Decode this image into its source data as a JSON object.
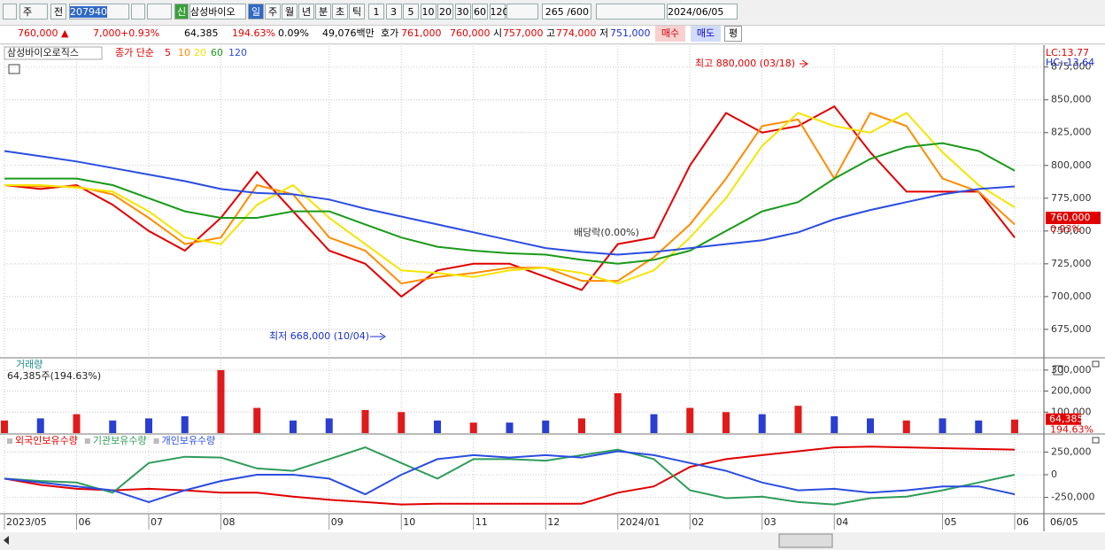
{
  "toolbar": {
    "market": "주",
    "scope": "전",
    "code": "207940",
    "badge": "신",
    "name": "삼성바이오",
    "periods": [
      "일",
      "주",
      "월",
      "년",
      "분",
      "초",
      "틱"
    ],
    "minutes": [
      "1",
      "3",
      "5",
      "10",
      "20",
      "30",
      "60",
      "120"
    ],
    "count": "265 /600",
    "date": "2024/06/05"
  },
  "quote": {
    "price": "760,000 ▲",
    "change": "7,000",
    "change_pct": "+0.93%",
    "volume": "64,385",
    "volume_ratio": "194.63%",
    "turnover": "0.09%",
    "amount": "49,076백만",
    "bid_label": "호가",
    "ask": "761,000",
    "bid": "760,000",
    "open_label": "시",
    "open": "757,000",
    "high_label": "고",
    "high": "774,000",
    "low_label": "저",
    "low": "751,000",
    "buy": "매수",
    "sell": "매도",
    "avg": "평"
  },
  "x_axis": {
    "categories": [
      "2023/05",
      null,
      "06",
      null,
      "07",
      null,
      "08",
      null,
      null,
      "09",
      null,
      "10",
      null,
      "11",
      null,
      "12",
      null,
      "2024/01",
      null,
      "02",
      null,
      "03",
      null,
      "04",
      null,
      null,
      "05",
      null,
      "06"
    ],
    "end_label": "06/05"
  },
  "chart_data": [
    {
      "type": "line",
      "title": "삼성바이오로직스",
      "subtitle": "종가 단순",
      "ylim": [
        654000,
        891000
      ],
      "yticks": [
        {
          "value": 675000,
          "label": "675,000"
        },
        {
          "value": 700000,
          "label": "700,000"
        },
        {
          "value": 725000,
          "label": "725,000"
        },
        {
          "value": 750000,
          "label": "750,000"
        },
        {
          "value": 775000,
          "label": "775,000"
        },
        {
          "value": 800000,
          "label": "800,000"
        },
        {
          "value": 825000,
          "label": "825,000"
        },
        {
          "value": 850000,
          "label": "850,000"
        },
        {
          "value": 875000,
          "label": "875,000"
        }
      ],
      "grid": true,
      "series": [
        {
          "name": "5",
          "color": "#e00000",
          "values": [
            785000,
            782000,
            785000,
            770000,
            750000,
            735000,
            760000,
            795000,
            765000,
            735000,
            725000,
            700000,
            720000,
            725000,
            725000,
            715000,
            705000,
            740000,
            745000,
            800000,
            840000,
            825000,
            830000,
            845000,
            810000,
            780000,
            780000,
            780000,
            745000
          ]
        },
        {
          "name": "10",
          "color": "#ff8c00",
          "values": [
            785000,
            784000,
            784000,
            778000,
            760000,
            740000,
            745000,
            785000,
            778000,
            745000,
            735000,
            710000,
            715000,
            718000,
            722000,
            722000,
            712000,
            712000,
            730000,
            755000,
            790000,
            830000,
            835000,
            790000,
            840000,
            830000,
            790000,
            780000,
            755000
          ]
        },
        {
          "name": "20",
          "color": "#f5e400",
          "values": [
            785000,
            785000,
            783000,
            780000,
            765000,
            745000,
            740000,
            770000,
            785000,
            760000,
            740000,
            720000,
            718000,
            715000,
            720000,
            722000,
            718000,
            710000,
            720000,
            745000,
            775000,
            815000,
            840000,
            830000,
            825000,
            840000,
            810000,
            785000,
            768000
          ]
        },
        {
          "name": "60",
          "color": "#1a9a1a",
          "values": [
            790000,
            790000,
            790000,
            785000,
            775000,
            765000,
            760000,
            760000,
            765000,
            765000,
            755000,
            745000,
            738000,
            735000,
            733000,
            732000,
            728000,
            725000,
            728000,
            735000,
            750000,
            765000,
            772000,
            790000,
            805000,
            814000,
            817000,
            811000,
            796000
          ]
        },
        {
          "name": "120",
          "color": "#2b4de0",
          "values": [
            811000,
            807000,
            803000,
            798000,
            793000,
            788000,
            782000,
            779000,
            778000,
            774000,
            767000,
            761000,
            755000,
            749000,
            743000,
            737000,
            734000,
            732000,
            734000,
            737000,
            740000,
            743000,
            749000,
            759000,
            766000,
            772000,
            778000,
            782000,
            784000
          ]
        }
      ],
      "annotations": [
        "최고 880,000 (03/18)",
        "최저 668,000 (10/04)",
        "배당락(0.00%)"
      ],
      "lc": "LC:13.77",
      "hc": "HC:-13.64",
      "price_marker": {
        "value": 760000,
        "label": "760,000",
        "change": "0.93%"
      }
    },
    {
      "type": "bar",
      "title": "거래량",
      "subtitle": "64,385주(194.63%)",
      "ylim": [
        0,
        350000
      ],
      "yticks": [
        {
          "value": 100000,
          "label": "100,000"
        },
        {
          "value": 200000,
          "label": "200,000"
        },
        {
          "value": 300000,
          "label": "300,000"
        }
      ],
      "grid": true,
      "values": [
        60000,
        70000,
        90000,
        60000,
        70000,
        80000,
        300000,
        120000,
        60000,
        70000,
        110000,
        100000,
        60000,
        50000,
        50000,
        60000,
        70000,
        190000,
        90000,
        120000,
        100000,
        90000,
        130000,
        80000,
        70000,
        60000,
        70000,
        60000,
        64385
      ],
      "up": [
        true,
        false,
        true,
        false,
        false,
        false,
        true,
        true,
        false,
        false,
        true,
        true,
        false,
        true,
        false,
        false,
        true,
        true,
        false,
        true,
        true,
        false,
        true,
        false,
        false,
        true,
        false,
        false,
        true
      ],
      "up_color": "#e01a1a",
      "down_color": "#2a3fd0",
      "last_marker": {
        "value": 64385,
        "label": "64,385",
        "ratio": "194.63%"
      }
    },
    {
      "type": "line",
      "ylim": [
        -410000,
        420000
      ],
      "yticks": [
        {
          "value": -250000,
          "label": "-250,000"
        },
        0,
        {
          "value": 250000,
          "label": "250,000"
        }
      ],
      "grid": true,
      "series": [
        {
          "name": "외국인보유수량",
          "color": "#e00000",
          "values": [
            -43000,
            -112000,
            -155000,
            -172000,
            -155000,
            -172000,
            -198000,
            -198000,
            -241000,
            -276000,
            -302000,
            -328000,
            -319000,
            -319000,
            -319000,
            -319000,
            -319000,
            -198000,
            -129000,
            86000,
            172000,
            216000,
            259000,
            302000,
            310000,
            302000,
            293000,
            284000,
            276000
          ]
        },
        {
          "name": "기관보유수량",
          "color": "#2e9c5a",
          "values": [
            -43000,
            -69000,
            -86000,
            -198000,
            129000,
            198000,
            190000,
            69000,
            43000,
            172000,
            302000,
            129000,
            -43000,
            172000,
            172000,
            155000,
            216000,
            276000,
            172000,
            -172000,
            -259000,
            -241000,
            -302000,
            -328000,
            -259000,
            -241000,
            -172000,
            -86000,
            0
          ]
        },
        {
          "name": "개인보유수량",
          "color": "#2b4de0",
          "values": [
            -43000,
            -86000,
            -129000,
            -172000,
            -302000,
            -172000,
            -69000,
            0,
            0,
            -43000,
            -216000,
            0,
            172000,
            216000,
            190000,
            216000,
            190000,
            259000,
            216000,
            129000,
            43000,
            -86000,
            -172000,
            -155000,
            -198000,
            -172000,
            -129000,
            -129000,
            -216000
          ]
        }
      ]
    }
  ]
}
